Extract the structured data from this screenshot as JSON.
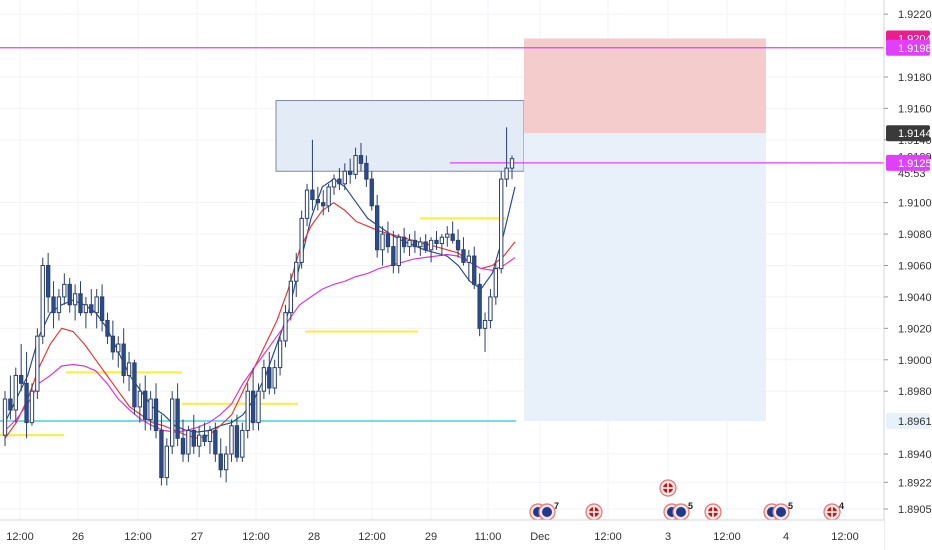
{
  "chart_data": {
    "type": "candlestick",
    "symbol": "",
    "ylim": [
      1.8898,
      1.9229
    ],
    "y_ticks": [
      "1.92200",
      "1.91800",
      "1.91600",
      "1.91400",
      "1.91000",
      "1.90800",
      "1.90600",
      "1.90400",
      "1.90200",
      "1.90000",
      "1.89800",
      "1.89400",
      "1.89220",
      "1.89050"
    ],
    "x_ticks": [
      "12:00",
      "26",
      "12:00",
      "27",
      "12:00",
      "28",
      "12:00",
      "29",
      "11:00",
      "Dec",
      "12:00",
      "3",
      "12:00",
      "4",
      "12:00"
    ],
    "price_labels": [
      {
        "text": "1.92045",
        "value": 1.92045,
        "color": "#e91e8c"
      },
      {
        "text": "1.91986",
        "value": 1.91986,
        "color": "#e040fb"
      },
      {
        "text": "1.91442",
        "value": 1.91442,
        "color": "#3a3a3a"
      },
      {
        "text": "1.91294",
        "value": 1.91294,
        "color": "#ffffff"
      },
      {
        "text": "45:53",
        "value": 1.9119,
        "color": "#ffffff"
      },
      {
        "text": "1.91253",
        "value": 1.91253,
        "color": "#e040fb"
      },
      {
        "text": "1.89610",
        "value": 1.8961,
        "color": "#e8f0fa"
      }
    ],
    "horizontal_lines": [
      {
        "value": 1.91986,
        "color": "#e040fb",
        "full": true
      },
      {
        "value": 1.91253,
        "color": "#e040fb",
        "full": false
      },
      {
        "value": 1.8961,
        "color": "#26c6da",
        "full": false
      }
    ],
    "zones": [
      {
        "kind": "supply",
        "from_value": 1.9165,
        "to_value": 1.912,
        "color": "#e3ebf6"
      },
      {
        "kind": "stop",
        "from_value": 1.92045,
        "to_value": 1.91442,
        "color": "#f4cccc"
      },
      {
        "kind": "target",
        "from_value": 1.91442,
        "to_value": 1.8961,
        "color": "#e8f0fa"
      }
    ],
    "yellow_levels": [
      {
        "value": 1.8952
      },
      {
        "value": 1.8992
      },
      {
        "value": 1.8972
      },
      {
        "value": 1.9018
      },
      {
        "value": 1.909
      }
    ],
    "series": [
      {
        "color": "#2a4d8f",
        "values": [
          1.896,
          1.8975,
          1.899,
          1.9015,
          1.903,
          1.9035,
          1.9038,
          1.9035,
          1.903,
          1.902,
          1.9005,
          1.899,
          1.898,
          1.897,
          1.8965,
          1.8958,
          1.8955,
          1.8954,
          1.8955,
          1.8958,
          1.896,
          1.8965,
          1.8975,
          1.899,
          1.901,
          1.903,
          1.906,
          1.909,
          1.911,
          1.9115,
          1.911,
          1.91,
          1.909,
          1.9085,
          1.908,
          1.9076,
          1.9073,
          1.907,
          1.9068,
          1.9066,
          1.906,
          1.905,
          1.9045,
          1.9055,
          1.908,
          1.911
        ]
      },
      {
        "color": "#e53935",
        "values": [
          1.895,
          1.896,
          1.8975,
          1.8995,
          1.901,
          1.902,
          1.9018,
          1.901,
          1.9,
          1.899,
          1.898,
          1.897,
          1.8965,
          1.896,
          1.8958,
          1.8955,
          1.8952,
          1.895,
          1.8952,
          1.8958,
          1.8965,
          1.898,
          1.8995,
          1.901,
          1.9025,
          1.9045,
          1.907,
          1.9085,
          1.9095,
          1.91,
          1.9095,
          1.9088,
          1.9085,
          1.9082,
          1.908,
          1.9078,
          1.9076,
          1.9074,
          1.9072,
          1.907,
          1.9068,
          1.9062,
          1.9058,
          1.906,
          1.9066,
          1.9075
        ]
      },
      {
        "color": "#d63adc",
        "values": [
          1.8955,
          1.8962,
          1.8972,
          1.8985,
          1.899,
          1.8996,
          1.8997,
          1.8996,
          1.8993,
          1.8985,
          1.8975,
          1.8968,
          1.8962,
          1.8958,
          1.8955,
          1.8954,
          1.8955,
          1.8957,
          1.896,
          1.8965,
          1.8972,
          1.8985,
          1.8995,
          1.9005,
          1.9015,
          1.9025,
          1.9035,
          1.904,
          1.9045,
          1.9048,
          1.905,
          1.9053,
          1.9055,
          1.9058,
          1.906,
          1.9062,
          1.9064,
          1.9065,
          1.9066,
          1.9067,
          1.9066,
          1.9062,
          1.9058,
          1.9057,
          1.906,
          1.9065
        ]
      }
    ],
    "candles": [
      [
        1.8952,
        1.898,
        1.8945,
        1.8975
      ],
      [
        1.8975,
        1.899,
        1.8962,
        1.8968
      ],
      [
        1.8968,
        1.8995,
        1.896,
        1.899
      ],
      [
        1.899,
        1.901,
        1.898,
        1.8985
      ],
      [
        1.8985,
        1.9005,
        1.895,
        1.896
      ],
      [
        1.896,
        1.8985,
        1.8958,
        1.898
      ],
      [
        1.898,
        1.902,
        1.8975,
        1.9015
      ],
      [
        1.9015,
        1.9065,
        1.901,
        1.906
      ],
      [
        1.906,
        1.9068,
        1.903,
        1.904
      ],
      [
        1.904,
        1.905,
        1.902,
        1.903
      ],
      [
        1.903,
        1.9045,
        1.9025,
        1.904
      ],
      [
        1.904,
        1.9055,
        1.9035,
        1.9048
      ],
      [
        1.9048,
        1.9052,
        1.903,
        1.9035
      ],
      [
        1.9035,
        1.9048,
        1.9025,
        1.9042
      ],
      [
        1.9042,
        1.905,
        1.9028,
        1.903
      ],
      [
        1.903,
        1.904,
        1.902,
        1.9035
      ],
      [
        1.9035,
        1.9045,
        1.9028,
        1.903
      ],
      [
        1.903,
        1.9045,
        1.902,
        1.904
      ],
      [
        1.904,
        1.9048,
        1.9018,
        1.9025
      ],
      [
        1.9025,
        1.903,
        1.901,
        1.9015
      ],
      [
        1.9015,
        1.9025,
        1.9,
        1.9005
      ],
      [
        1.9005,
        1.9015,
        1.8995,
        1.901
      ],
      [
        1.901,
        1.902,
        1.8985,
        1.899
      ],
      [
        1.899,
        1.9005,
        1.898,
        1.8998
      ],
      [
        1.8998,
        1.9,
        1.8965,
        1.897
      ],
      [
        1.897,
        1.8985,
        1.896,
        1.898
      ],
      [
        1.898,
        1.899,
        1.8955,
        1.8962
      ],
      [
        1.8962,
        1.898,
        1.8955,
        1.8975
      ],
      [
        1.8975,
        1.8985,
        1.895,
        1.8955
      ],
      [
        1.8955,
        1.8965,
        1.892,
        1.8925
      ],
      [
        1.8925,
        1.895,
        1.892,
        1.8945
      ],
      [
        1.8945,
        1.898,
        1.894,
        1.8975
      ],
      [
        1.8975,
        1.8985,
        1.8945,
        1.895
      ],
      [
        1.895,
        1.8962,
        1.8935,
        1.894
      ],
      [
        1.894,
        1.8958,
        1.8935,
        1.8955
      ],
      [
        1.8955,
        1.8965,
        1.894,
        1.8945
      ],
      [
        1.8945,
        1.8958,
        1.8938,
        1.8952
      ],
      [
        1.8952,
        1.896,
        1.8945,
        1.8948
      ],
      [
        1.8948,
        1.8958,
        1.894,
        1.8955
      ],
      [
        1.8955,
        1.896,
        1.8935,
        1.894
      ],
      [
        1.894,
        1.895,
        1.8925,
        1.893
      ],
      [
        1.893,
        1.8945,
        1.8922,
        1.894
      ],
      [
        1.894,
        1.8962,
        1.8935,
        1.8958
      ],
      [
        1.8958,
        1.8965,
        1.8935,
        1.8938
      ],
      [
        1.8938,
        1.896,
        1.8935,
        1.8955
      ],
      [
        1.8955,
        1.8985,
        1.895,
        1.898
      ],
      [
        1.898,
        1.8995,
        1.8955,
        1.896
      ],
      [
        1.896,
        1.8985,
        1.8955,
        1.898
      ],
      [
        1.898,
        1.9,
        1.8975,
        1.8995
      ],
      [
        1.8995,
        1.9005,
        1.8978,
        1.8982
      ],
      [
        1.8982,
        1.9,
        1.8978,
        1.8995
      ],
      [
        1.8995,
        1.9015,
        1.899,
        1.9012
      ],
      [
        1.9012,
        1.9035,
        1.9008,
        1.903
      ],
      [
        1.903,
        1.9055,
        1.9025,
        1.905
      ],
      [
        1.905,
        1.9068,
        1.904,
        1.9062
      ],
      [
        1.9062,
        1.9095,
        1.9058,
        1.909
      ],
      [
        1.909,
        1.9112,
        1.9085,
        1.9108
      ],
      [
        1.9108,
        1.914,
        1.9095,
        1.9102
      ],
      [
        1.9102,
        1.911,
        1.9095,
        1.91
      ],
      [
        1.91,
        1.9108,
        1.9092,
        1.9098
      ],
      [
        1.9098,
        1.9112,
        1.9094,
        1.911
      ],
      [
        1.911,
        1.9118,
        1.9105,
        1.9115
      ],
      [
        1.9115,
        1.9122,
        1.9108,
        1.9112
      ],
      [
        1.9112,
        1.9125,
        1.9108,
        1.912
      ],
      [
        1.912,
        1.9128,
        1.9112,
        1.9118
      ],
      [
        1.9118,
        1.9135,
        1.9115,
        1.913
      ],
      [
        1.913,
        1.9138,
        1.912,
        1.9125
      ],
      [
        1.9125,
        1.913,
        1.911,
        1.9115
      ],
      [
        1.9115,
        1.912,
        1.9095,
        1.9098
      ],
      [
        1.9098,
        1.9105,
        1.9065,
        1.907
      ],
      [
        1.907,
        1.9085,
        1.906,
        1.908
      ],
      [
        1.908,
        1.9088,
        1.9068,
        1.9072
      ],
      [
        1.9072,
        1.9082,
        1.9055,
        1.906
      ],
      [
        1.906,
        1.908,
        1.9055,
        1.9078
      ],
      [
        1.9078,
        1.9084,
        1.9068,
        1.9072
      ],
      [
        1.9072,
        1.908,
        1.9066,
        1.9076
      ],
      [
        1.9076,
        1.9082,
        1.9068,
        1.9072
      ],
      [
        1.9072,
        1.9078,
        1.9066,
        1.9075
      ],
      [
        1.9075,
        1.908,
        1.9068,
        1.907
      ],
      [
        1.907,
        1.9078,
        1.9062,
        1.9076
      ],
      [
        1.9076,
        1.9082,
        1.907,
        1.9074
      ],
      [
        1.9074,
        1.908,
        1.9066,
        1.9078
      ],
      [
        1.9078,
        1.9085,
        1.9072,
        1.908
      ],
      [
        1.908,
        1.9088,
        1.9074,
        1.9076
      ],
      [
        1.9076,
        1.9083,
        1.9065,
        1.907
      ],
      [
        1.907,
        1.9078,
        1.906,
        1.9062
      ],
      [
        1.9062,
        1.907,
        1.905,
        1.9066
      ],
      [
        1.9066,
        1.9072,
        1.9045,
        1.9048
      ],
      [
        1.9048,
        1.9055,
        1.9015,
        1.902
      ],
      [
        1.902,
        1.903,
        1.9005,
        1.9025
      ],
      [
        1.9025,
        1.9045,
        1.902,
        1.904
      ],
      [
        1.904,
        1.9062,
        1.9035,
        1.9058
      ],
      [
        1.9058,
        1.912,
        1.9055,
        1.9115
      ],
      [
        1.9115,
        1.9148,
        1.911,
        1.9122
      ],
      [
        1.9122,
        1.913,
        1.9115,
        1.9128
      ]
    ],
    "event_markers": [
      {
        "flags": [
          "au",
          "nz"
        ],
        "count": "7"
      },
      {
        "flags": [
          "uk"
        ],
        "count": ""
      },
      {
        "flags": [
          "uk"
        ],
        "count": ""
      },
      {
        "flags": [
          "au",
          "nz"
        ],
        "count": "5"
      },
      {
        "flags": [
          "uk"
        ],
        "count": ""
      },
      {
        "flags": [
          "au",
          "nz"
        ],
        "count": "5"
      },
      {
        "flags": [
          "uk"
        ],
        "count": "4"
      }
    ]
  }
}
